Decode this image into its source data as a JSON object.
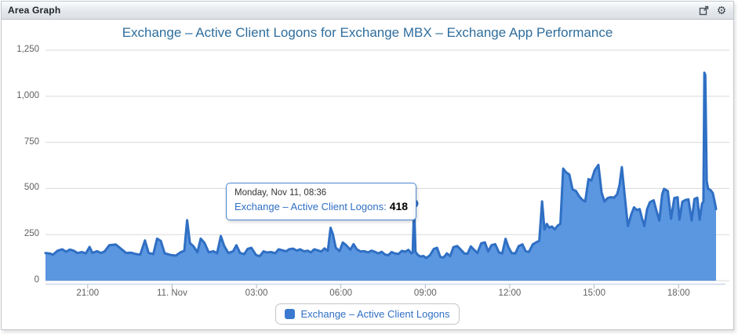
{
  "window": {
    "title": "Area Graph",
    "icons": [
      {
        "name": "open-in-new-window-icon"
      },
      {
        "name": "settings-gear-icon"
      }
    ]
  },
  "chart": {
    "title": "Exchange – Active Client Logons for Exchange MBX – Exchange App Performance"
  },
  "tooltip": {
    "date": "Monday, Nov 11, 08:36",
    "series_label": "Exchange – Active Client Logons:",
    "value": "418"
  },
  "legend": {
    "label": "Exchange – Active Client Logons"
  },
  "colors": {
    "area_fill": "#5b96e0",
    "area_line": "#2f6fc4",
    "grid": "#d9d9d9",
    "axis_line": "#ccd6eb",
    "title_blue": "#2e6e9e",
    "accent_blue": "#2f6fc4"
  },
  "chart_data": {
    "type": "area",
    "title": "Exchange – Active Client Logons for Exchange MBX – Exchange App Performance",
    "xlabel": "",
    "ylabel": "",
    "x_unit": "minutes since Nov 10 19:30",
    "x_range": [
      0,
      1450
    ],
    "ylim": [
      0,
      1250
    ],
    "grid": true,
    "legend_position": "bottom",
    "yticks": [
      {
        "v": 0,
        "label": "0"
      },
      {
        "v": 250,
        "label": "250"
      },
      {
        "v": 500,
        "label": "500"
      },
      {
        "v": 750,
        "label": "750"
      },
      {
        "v": 1000,
        "label": "1,000"
      },
      {
        "v": 1250,
        "label": "1,250"
      }
    ],
    "xticks": [
      {
        "t": 90,
        "label": "21:00"
      },
      {
        "t": 270,
        "label": "11. Nov"
      },
      {
        "t": 450,
        "label": "03:00"
      },
      {
        "t": 630,
        "label": "06:00"
      },
      {
        "t": 810,
        "label": "09:00"
      },
      {
        "t": 990,
        "label": "12:00"
      },
      {
        "t": 1170,
        "label": "15:00"
      },
      {
        "t": 1350,
        "label": "18:00"
      }
    ],
    "highlight_point": {
      "t": 786,
      "v": 418,
      "time_label": "Monday, Nov 11, 08:36"
    },
    "series": [
      {
        "name": "Exchange – Active Client Logons",
        "points": [
          [
            0,
            150
          ],
          [
            8,
            148
          ],
          [
            16,
            141
          ],
          [
            26,
            163
          ],
          [
            36,
            170
          ],
          [
            44,
            157
          ],
          [
            52,
            169
          ],
          [
            60,
            163
          ],
          [
            68,
            150
          ],
          [
            78,
            155
          ],
          [
            86,
            148
          ],
          [
            94,
            183
          ],
          [
            100,
            151
          ],
          [
            110,
            160
          ],
          [
            118,
            150
          ],
          [
            126,
            158
          ],
          [
            136,
            192
          ],
          [
            150,
            196
          ],
          [
            162,
            171
          ],
          [
            172,
            150
          ],
          [
            182,
            152
          ],
          [
            192,
            145
          ],
          [
            202,
            141
          ],
          [
            212,
            218
          ],
          [
            220,
            150
          ],
          [
            230,
            144
          ],
          [
            238,
            228
          ],
          [
            246,
            215
          ],
          [
            254,
            149
          ],
          [
            266,
            140
          ],
          [
            278,
            136
          ],
          [
            288,
            154
          ],
          [
            296,
            162
          ],
          [
            302,
            328
          ],
          [
            308,
            204
          ],
          [
            316,
            186
          ],
          [
            324,
            154
          ],
          [
            331,
            228
          ],
          [
            339,
            205
          ],
          [
            348,
            154
          ],
          [
            358,
            160
          ],
          [
            366,
            149
          ],
          [
            374,
            242
          ],
          [
            381,
            189
          ],
          [
            390,
            150
          ],
          [
            400,
            159
          ],
          [
            407,
            192
          ],
          [
            415,
            150
          ],
          [
            424,
            144
          ],
          [
            431,
            172
          ],
          [
            439,
            178
          ],
          [
            449,
            139
          ],
          [
            457,
            133
          ],
          [
            465,
            159
          ],
          [
            472,
            153
          ],
          [
            481,
            155
          ],
          [
            490,
            149
          ],
          [
            497,
            170
          ],
          [
            505,
            165
          ],
          [
            513,
            159
          ],
          [
            520,
            171
          ],
          [
            528,
            174
          ],
          [
            536,
            163
          ],
          [
            543,
            170
          ],
          [
            551,
            159
          ],
          [
            559,
            163
          ],
          [
            566,
            153
          ],
          [
            573,
            170
          ],
          [
            580,
            165
          ],
          [
            588,
            158
          ],
          [
            595,
            175
          ],
          [
            602,
            161
          ],
          [
            608,
            287
          ],
          [
            613,
            251
          ],
          [
            619,
            179
          ],
          [
            627,
            160
          ],
          [
            634,
            207
          ],
          [
            641,
            193
          ],
          [
            650,
            168
          ],
          [
            657,
            198
          ],
          [
            664,
            170
          ],
          [
            672,
            158
          ],
          [
            680,
            160
          ],
          [
            688,
            153
          ],
          [
            695,
            163
          ],
          [
            702,
            157
          ],
          [
            710,
            148
          ],
          [
            717,
            157
          ],
          [
            724,
            142
          ],
          [
            731,
            138
          ],
          [
            738,
            155
          ],
          [
            746,
            147
          ],
          [
            753,
            145
          ],
          [
            760,
            162
          ],
          [
            767,
            157
          ],
          [
            774,
            167
          ],
          [
            780,
            149
          ],
          [
            783,
            151
          ],
          [
            786,
            418
          ],
          [
            789,
            157
          ],
          [
            794,
            139
          ],
          [
            800,
            131
          ],
          [
            806,
            134
          ],
          [
            812,
            123
          ],
          [
            820,
            138
          ],
          [
            828,
            172
          ],
          [
            835,
            178
          ],
          [
            842,
            128
          ],
          [
            849,
            126
          ],
          [
            856,
            148
          ],
          [
            863,
            133
          ],
          [
            870,
            182
          ],
          [
            878,
            188
          ],
          [
            886,
            167
          ],
          [
            893,
            148
          ],
          [
            900,
            146
          ],
          [
            907,
            186
          ],
          [
            914,
            168
          ],
          [
            921,
            150
          ],
          [
            929,
            202
          ],
          [
            937,
            208
          ],
          [
            944,
            158
          ],
          [
            951,
            192
          ],
          [
            959,
            198
          ],
          [
            967,
            153
          ],
          [
            974,
            148
          ],
          [
            981,
            227
          ],
          [
            987,
            183
          ],
          [
            994,
            150
          ],
          [
            1002,
            148
          ],
          [
            1009,
            187
          ],
          [
            1017,
            197
          ],
          [
            1024,
            160
          ],
          [
            1031,
            156
          ],
          [
            1039,
            197
          ],
          [
            1046,
            207
          ],
          [
            1053,
            217
          ],
          [
            1059,
            430
          ],
          [
            1064,
            278
          ],
          [
            1069,
            308
          ],
          [
            1074,
            288
          ],
          [
            1080,
            294
          ],
          [
            1086,
            278
          ],
          [
            1092,
            298
          ],
          [
            1098,
            308
          ],
          [
            1104,
            608
          ],
          [
            1110,
            588
          ],
          [
            1117,
            576
          ],
          [
            1124,
            494
          ],
          [
            1131,
            487
          ],
          [
            1138,
            458
          ],
          [
            1145,
            438
          ],
          [
            1151,
            430
          ],
          [
            1158,
            551
          ],
          [
            1164,
            543
          ],
          [
            1171,
            598
          ],
          [
            1179,
            628
          ],
          [
            1186,
            478
          ],
          [
            1192,
            430
          ],
          [
            1199,
            448
          ],
          [
            1205,
            453
          ],
          [
            1212,
            450
          ],
          [
            1219,
            468
          ],
          [
            1224,
            518
          ],
          [
            1229,
            616
          ],
          [
            1235,
            468
          ],
          [
            1242,
            296
          ],
          [
            1249,
            358
          ],
          [
            1255,
            398
          ],
          [
            1261,
            383
          ],
          [
            1267,
            388
          ],
          [
            1272,
            338
          ],
          [
            1277,
            296
          ],
          [
            1283,
            388
          ],
          [
            1289,
            426
          ],
          [
            1297,
            436
          ],
          [
            1303,
            378
          ],
          [
            1309,
            326
          ],
          [
            1315,
            468
          ],
          [
            1319,
            498
          ],
          [
            1327,
            486
          ],
          [
            1334,
            336
          ],
          [
            1341,
            448
          ],
          [
            1348,
            452
          ],
          [
            1352,
            331
          ],
          [
            1358,
            428
          ],
          [
            1365,
            438
          ],
          [
            1371,
            441
          ],
          [
            1378,
            326
          ],
          [
            1384,
            443
          ],
          [
            1390,
            450
          ],
          [
            1395,
            331
          ],
          [
            1400,
            418
          ],
          [
            1403,
            428
          ],
          [
            1405,
            1128
          ],
          [
            1407,
            1115
          ],
          [
            1410,
            540
          ],
          [
            1413,
            498
          ],
          [
            1418,
            492
          ],
          [
            1423,
            475
          ],
          [
            1427,
            430
          ],
          [
            1430,
            388
          ]
        ]
      }
    ]
  }
}
